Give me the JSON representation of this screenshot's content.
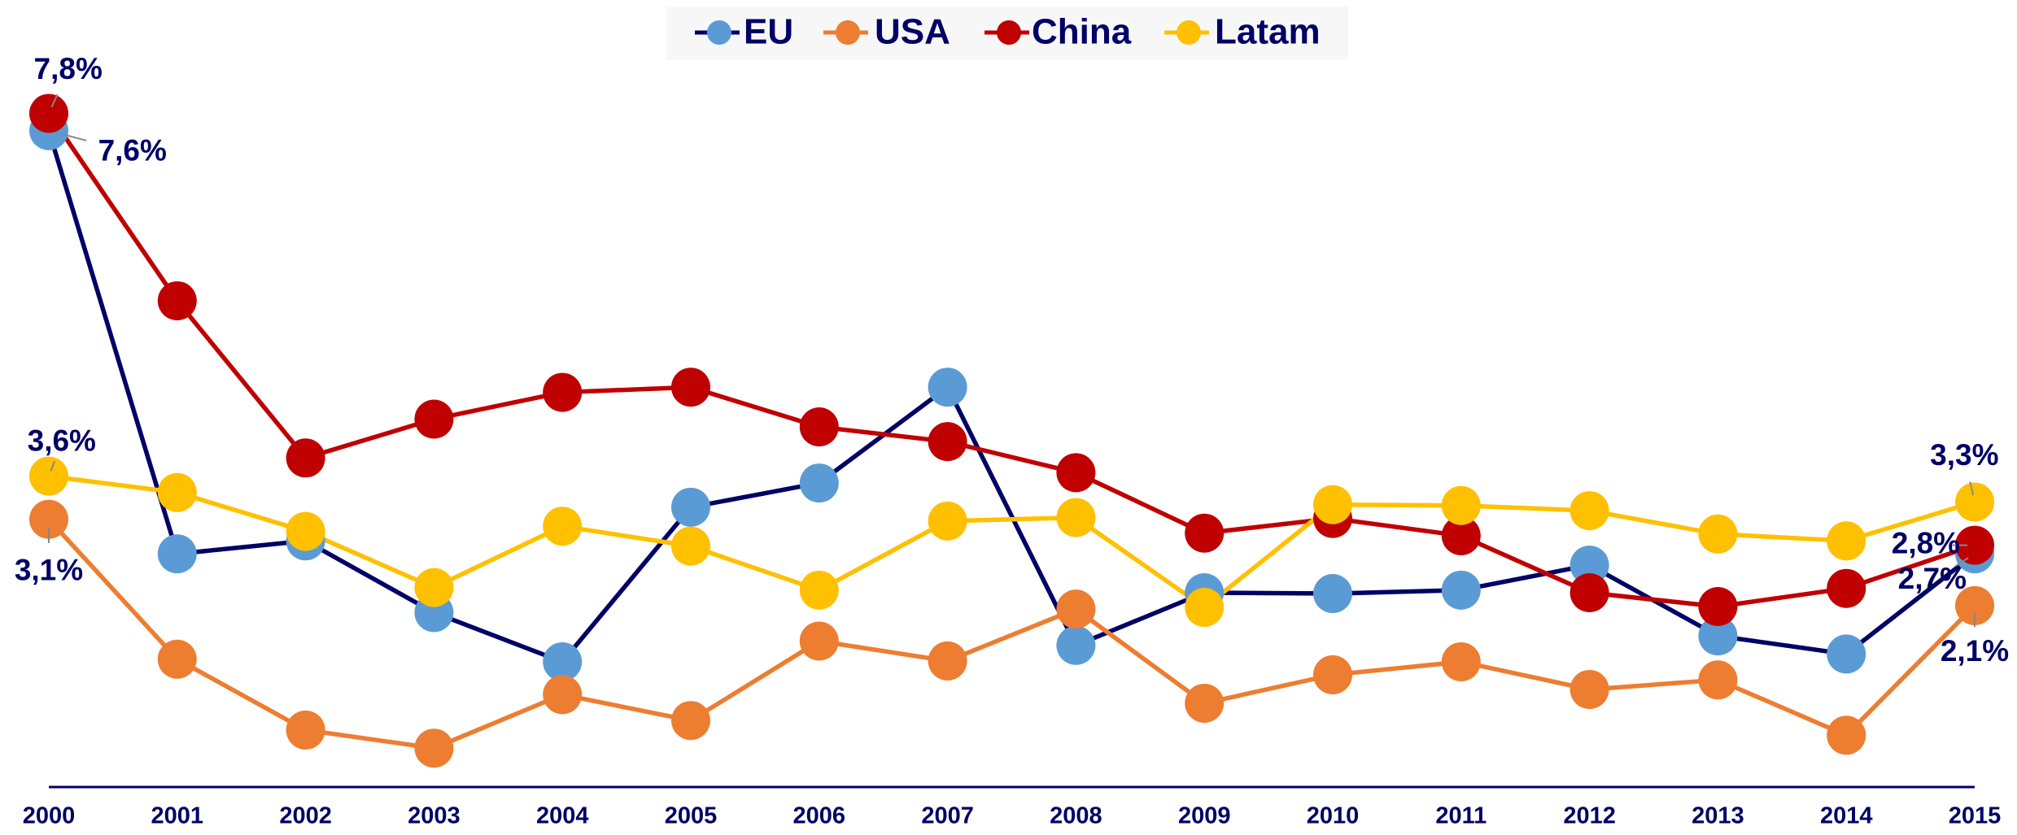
{
  "chart_data": {
    "type": "line",
    "categories": [
      "2000",
      "2001",
      "2002",
      "2003",
      "2004",
      "2005",
      "2006",
      "2007",
      "2008",
      "2009",
      "2010",
      "2011",
      "2012",
      "2013",
      "2014",
      "2015"
    ],
    "ylim": [
      0,
      9
    ],
    "legend": "top",
    "series": [
      {
        "name": "EU",
        "color": "#5b9bd5",
        "line_color": "#000066",
        "values": [
          7.6,
          2.7,
          2.85,
          2.02,
          1.45,
          3.24,
          3.52,
          4.63,
          1.64,
          2.25,
          2.24,
          2.28,
          2.57,
          1.75,
          1.54,
          2.7
        ],
        "value_labels": [
          "7,6%",
          null,
          null,
          null,
          null,
          null,
          null,
          null,
          null,
          null,
          null,
          null,
          null,
          null,
          null,
          "2,7%"
        ]
      },
      {
        "name": "USA",
        "color": "#ed7d31",
        "values": [
          3.1,
          1.48,
          0.66,
          0.45,
          1.07,
          0.77,
          1.69,
          1.46,
          2.06,
          0.97,
          1.3,
          1.45,
          1.13,
          1.24,
          0.6,
          2.1
        ],
        "value_labels": [
          "3,1%",
          null,
          null,
          null,
          null,
          null,
          null,
          null,
          null,
          null,
          null,
          null,
          null,
          null,
          null,
          "2,1%"
        ]
      },
      {
        "name": "China",
        "color": "#c00000",
        "values": [
          7.8,
          5.63,
          3.81,
          4.26,
          4.57,
          4.63,
          4.17,
          4.0,
          3.64,
          2.94,
          3.11,
          2.91,
          2.25,
          2.09,
          2.3,
          2.8
        ],
        "value_labels": [
          "7,8%",
          null,
          null,
          null,
          null,
          null,
          null,
          null,
          null,
          null,
          null,
          null,
          null,
          null,
          null,
          "2,8%"
        ]
      },
      {
        "name": "Latam",
        "color": "#ffc000",
        "values": [
          3.6,
          3.41,
          2.96,
          2.31,
          3.02,
          2.79,
          2.28,
          3.08,
          3.12,
          2.08,
          3.27,
          3.26,
          3.2,
          2.93,
          2.85,
          3.3
        ],
        "value_labels": [
          "3,6%",
          null,
          null,
          null,
          null,
          null,
          null,
          null,
          null,
          null,
          null,
          null,
          null,
          null,
          null,
          "3,3%"
        ]
      }
    ]
  }
}
